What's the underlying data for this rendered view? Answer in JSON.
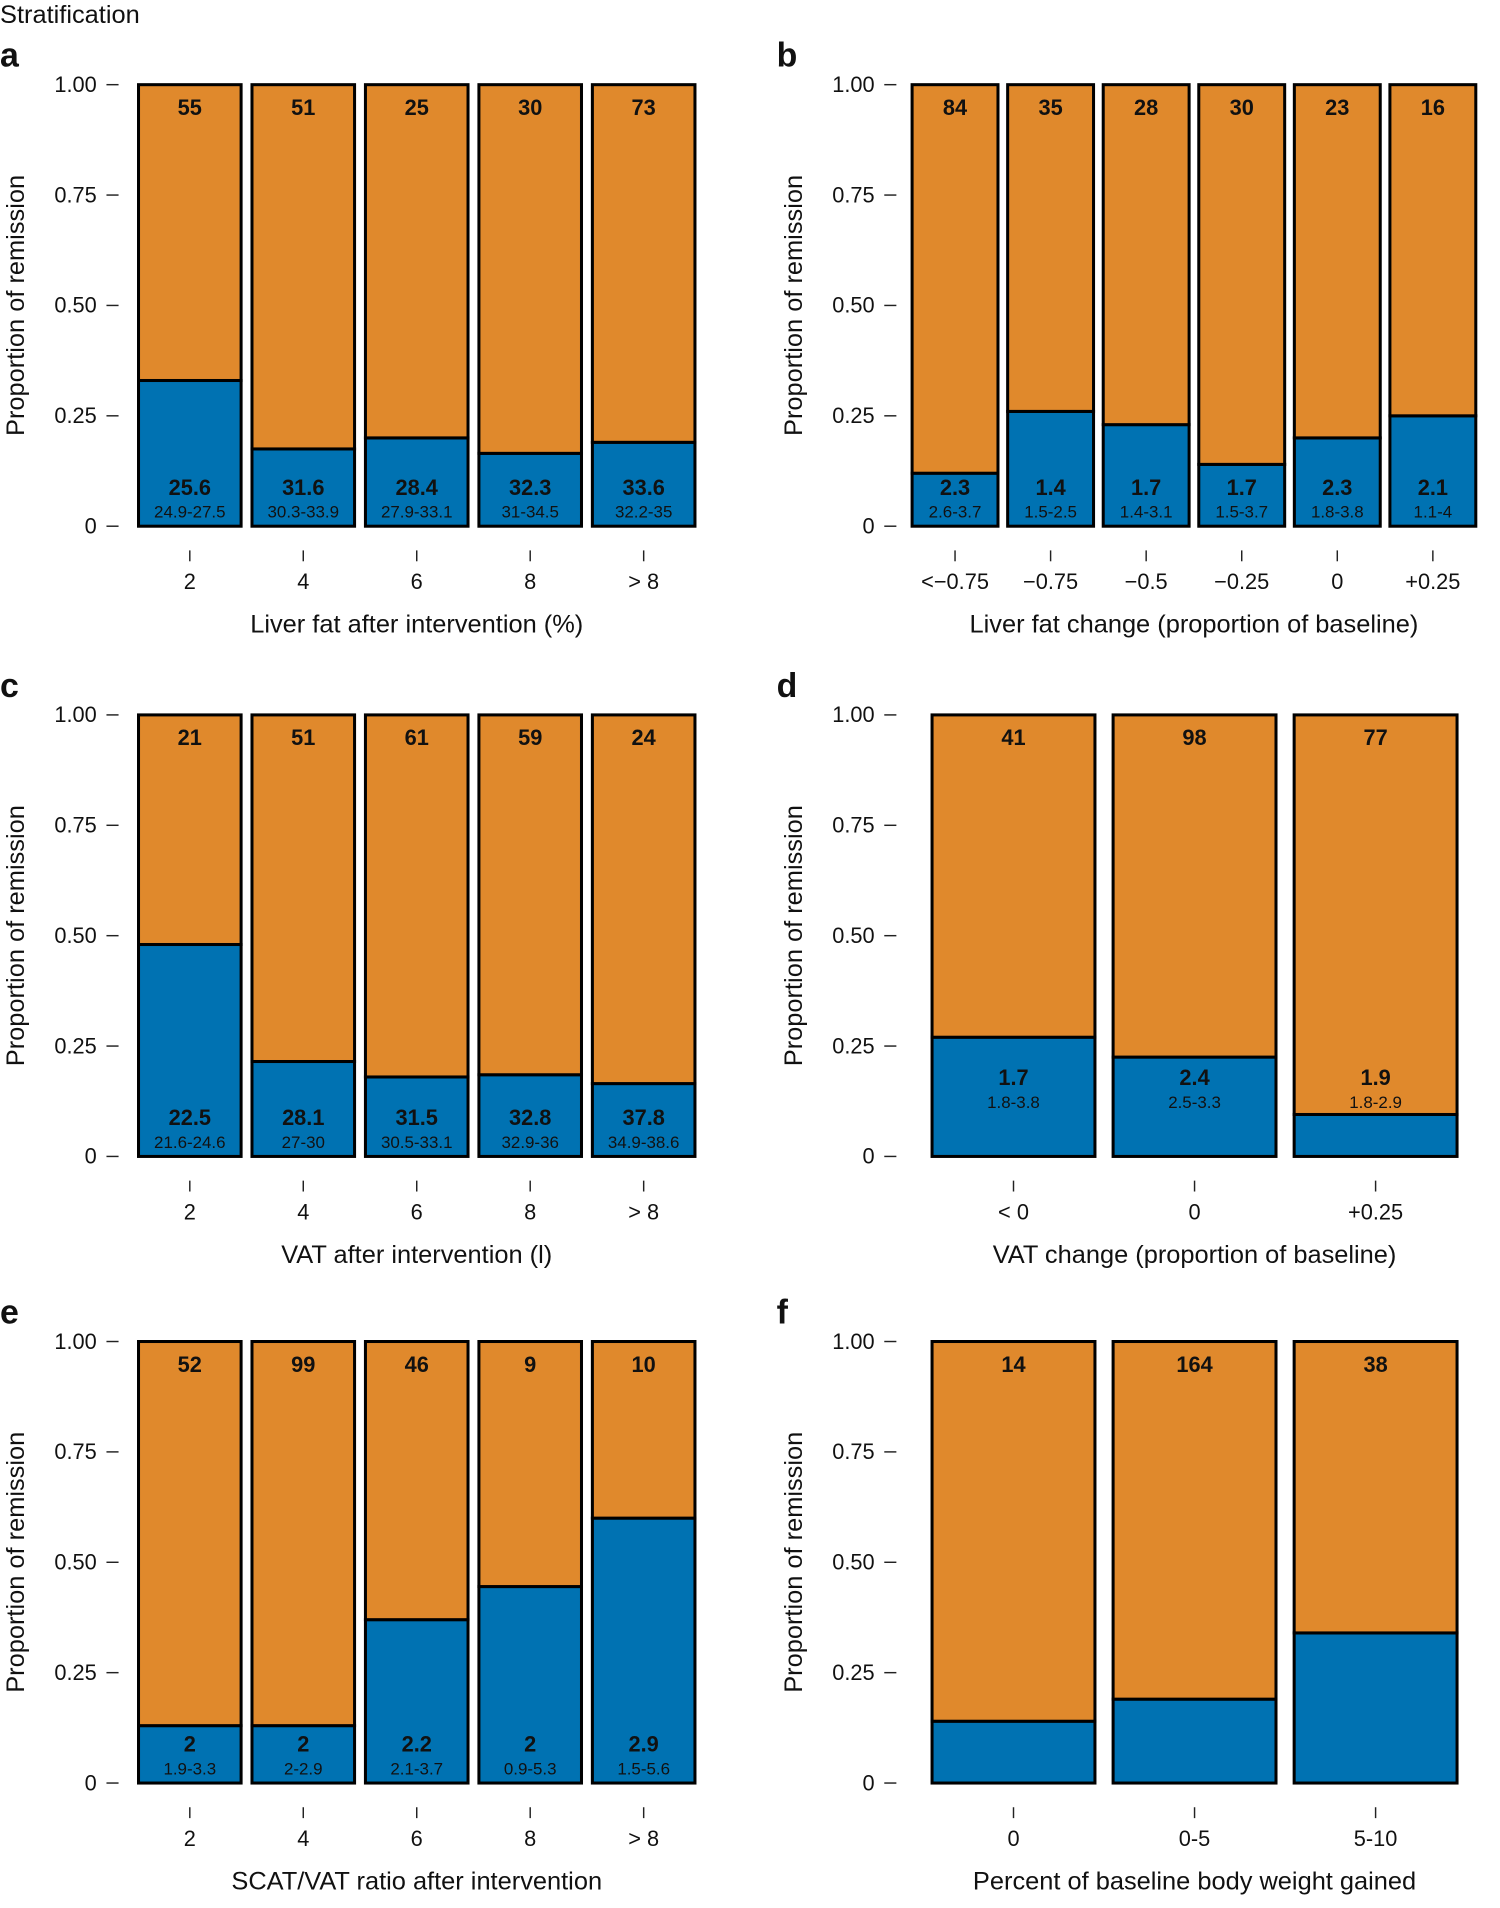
{
  "title": "Stratification",
  "chart_data": [
    {
      "type": "bar",
      "stacked": true,
      "panel_label": "a",
      "ylabel": "Proportion of remission",
      "xlabel": "Liver fat after intervention (%)",
      "categories": [
        "2",
        "4",
        "6",
        "8",
        "> 8"
      ],
      "series": [
        {
          "color": "#0072b2",
          "values": [
            0.33,
            0.175,
            0.2,
            0.165,
            0.19
          ]
        },
        {
          "color": "#e0892c",
          "values": [
            0.67,
            0.825,
            0.8,
            0.835,
            0.81
          ]
        }
      ],
      "counts": [
        55,
        51,
        25,
        30,
        73
      ],
      "medians": [
        25.6,
        31.6,
        28.4,
        32.3,
        33.6
      ],
      "ranges": [
        "24.9-27.5",
        "30.3-33.9",
        "27.9-33.1",
        "31-34.5",
        "32.2-35"
      ],
      "ylim": [
        0,
        1
      ],
      "yticks": [
        0,
        0.25,
        {
          "value": 0.5,
          "label": "0.50"
        },
        0.75,
        {
          "value": 1,
          "label": "1.00"
        }
      ]
    },
    {
      "type": "bar",
      "stacked": true,
      "panel_label": "b",
      "ylabel": "Proportion of remission",
      "xlabel": "Liver fat change (proportion of baseline)",
      "categories": [
        "<−0.75",
        "−0.75",
        "−0.5",
        "−0.25",
        "0",
        "+0.25"
      ],
      "series": [
        {
          "color": "#0072b2",
          "values": [
            0.12,
            0.26,
            0.23,
            0.14,
            0.2,
            0.25
          ]
        },
        {
          "color": "#e0892c",
          "values": [
            0.88,
            0.74,
            0.77,
            0.86,
            0.8,
            0.75
          ]
        }
      ],
      "counts": [
        84,
        35,
        28,
        30,
        23,
        16
      ],
      "medians": [
        2.3,
        1.4,
        1.7,
        1.7,
        2.3,
        2.1
      ],
      "ranges": [
        "2.6-3.7",
        "1.5-2.5",
        "1.4-3.1",
        "1.5-3.7",
        "1.8-3.8",
        "1.1-4"
      ],
      "ylim": [
        0,
        1
      ],
      "yticks": [
        0,
        0.25,
        {
          "value": 0.5,
          "label": "0.50"
        },
        0.75,
        {
          "value": 1,
          "label": "1.00"
        }
      ]
    },
    {
      "type": "bar",
      "stacked": true,
      "panel_label": "c",
      "ylabel": "Proportion of remission",
      "xlabel": "VAT after intervention (l)",
      "categories": [
        "2",
        "4",
        "6",
        "8",
        "> 8"
      ],
      "series": [
        {
          "color": "#0072b2",
          "values": [
            0.48,
            0.215,
            0.18,
            0.185,
            0.165
          ]
        },
        {
          "color": "#e0892c",
          "values": [
            0.52,
            0.785,
            0.82,
            0.815,
            0.835
          ]
        }
      ],
      "counts": [
        21,
        51,
        61,
        59,
        24
      ],
      "medians": [
        22.5,
        28.1,
        31.5,
        32.8,
        37.8
      ],
      "ranges": [
        "21.6-24.6",
        "27-30",
        "30.5-33.1",
        "32.9-36",
        "34.9-38.6"
      ],
      "ylim": [
        0,
        1
      ],
      "yticks": [
        0,
        0.25,
        {
          "value": 0.5,
          "label": "0.50"
        },
        0.75,
        {
          "value": 1,
          "label": "1.00"
        }
      ]
    },
    {
      "type": "bar",
      "stacked": true,
      "panel_label": "d",
      "ylabel": "Proportion of remission",
      "xlabel": "VAT change (proportion of baseline)",
      "categories": [
        "< 0",
        "0",
        "+0.25"
      ],
      "series": [
        {
          "color": "#0072b2",
          "values": [
            0.27,
            0.225,
            0.095
          ]
        },
        {
          "color": "#e0892c",
          "values": [
            0.73,
            0.775,
            0.905
          ]
        }
      ],
      "counts": [
        41,
        98,
        77
      ],
      "medians": [
        1.7,
        2.4,
        1.9
      ],
      "ranges": [
        "1.8-3.8",
        "2.5-3.3",
        "1.8-2.9"
      ],
      "ylim": [
        0,
        1
      ],
      "yticks": [
        0,
        0.25,
        {
          "value": 0.5,
          "label": "0.50"
        },
        0.75,
        {
          "value": 1,
          "label": "1.00"
        }
      ]
    },
    {
      "type": "bar",
      "stacked": true,
      "panel_label": "e",
      "ylabel": "Proportion of remission",
      "xlabel": "SCAT/VAT ratio after intervention",
      "categories": [
        "2",
        "4",
        "6",
        "8",
        "> 8"
      ],
      "series": [
        {
          "color": "#0072b2",
          "values": [
            0.13,
            0.13,
            0.37,
            0.445,
            0.6
          ]
        },
        {
          "color": "#e0892c",
          "values": [
            0.87,
            0.87,
            0.63,
            0.555,
            0.4
          ]
        }
      ],
      "counts": [
        52,
        99,
        46,
        9,
        10
      ],
      "medians": [
        2,
        2,
        2.2,
        2,
        2.9
      ],
      "ranges": [
        "1.9-3.3",
        "2-2.9",
        "2.1-3.7",
        "0.9-5.3",
        "1.5-5.6"
      ],
      "ylim": [
        0,
        1
      ],
      "yticks": [
        0,
        0.25,
        {
          "value": 0.5,
          "label": "0.50"
        },
        0.75,
        {
          "value": 1,
          "label": "1.00"
        }
      ]
    },
    {
      "type": "bar",
      "stacked": true,
      "panel_label": "f",
      "ylabel": "Proportion of remission",
      "xlabel": "Percent of baseline body weight gained",
      "categories": [
        "0",
        "0-5",
        "5-10"
      ],
      "series": [
        {
          "color": "#0072b2",
          "values": [
            0.14,
            0.19,
            0.34
          ]
        },
        {
          "color": "#e0892c",
          "values": [
            0.86,
            0.81,
            0.66
          ]
        }
      ],
      "counts": [
        14,
        164,
        38
      ],
      "ylim": [
        0,
        1
      ],
      "yticks": [
        0,
        0.25,
        {
          "value": 0.5,
          "label": "0.50"
        },
        0.75,
        {
          "value": 1,
          "label": "1.00"
        }
      ]
    }
  ]
}
